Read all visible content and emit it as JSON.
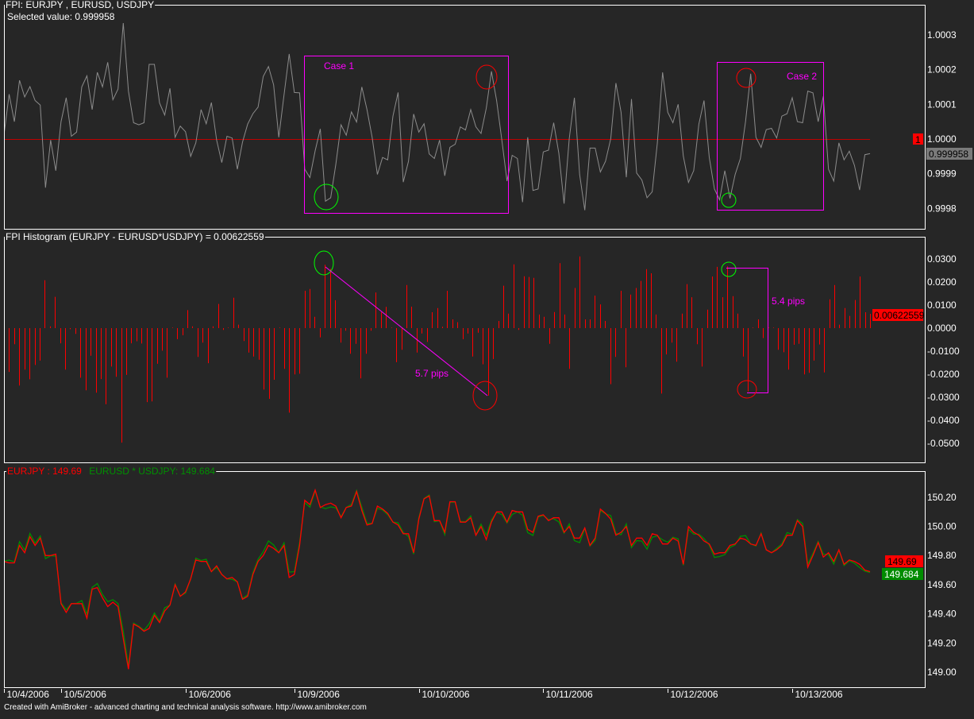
{
  "colors": {
    "background": "#262626",
    "fpi_line": "#8c8c8c",
    "zero_line": "#c00000",
    "histogram": "#ff0000",
    "eurjpy": "#ff0000",
    "synthetic": "#008c00",
    "annotation": "#ff00ff",
    "circle_low": "#00ff00",
    "circle_high": "#ff0000",
    "badge_gray": "#7a7a7a"
  },
  "footer": "Created with AmiBroker - advanced charting and technical analysis software. http://www.amibroker.com",
  "chart_data": [
    {
      "type": "line",
      "title": "FPI:  EURJPY , EURUSD, USDJPY",
      "selected_label": "Selected value: 0.999958",
      "reference_value": 1.0,
      "reference_badge": "1",
      "last_badge": "0.999958",
      "ylim": [
        0.99975,
        1.00037
      ],
      "y_ticks": [
        {
          "v": 1.0003,
          "label": "1.0003"
        },
        {
          "v": 1.0002,
          "label": "1.0002"
        },
        {
          "v": 1.0001,
          "label": "1.0001"
        },
        {
          "v": 1.0,
          "label": "1.0000"
        },
        {
          "v": 0.9999,
          "label": "0.9999"
        },
        {
          "v": 0.9998,
          "label": "0.9998"
        }
      ],
      "annotations": {
        "case1": "Case 1",
        "case2": "Case 2"
      },
      "values": [
        1.000012,
        1.000129,
        1.00005,
        1.000169,
        1.000121,
        1.000151,
        1.000111,
        1.000098,
        0.99986,
        0.999997,
        0.999909,
        1.00005,
        1.000119,
        1.000008,
        1.00002,
        1.00015,
        1.000182,
        1.000085,
        1.000192,
        1.00015,
        1.000221,
        1.000113,
        1.000144,
        1.000334,
        1.000138,
        1.000047,
        1.000041,
        1.000047,
        1.000215,
        1.000215,
        1.000104,
        1.000069,
        1.000146,
        1.000005,
        1.000037,
        1.000021,
        0.99995,
        0.999989,
        1.000085,
        1.000044,
        1.000105,
        0.999997,
        0.999932,
        1.000008,
        1.000003,
        0.999913,
        0.999991,
        1.000043,
        1.000073,
        1.000092,
        1.00018,
        1.000209,
        1.000156,
        1.000005,
        1.000127,
        1.000245,
        1.000134,
        1.000133,
        0.999913,
        0.999889,
        0.999966,
        1.000029,
        0.999821,
        0.999831,
        0.999928,
        1.000041,
        1.000011,
        1.000078,
        1.000049,
        1.00015,
        1.000085,
        1.000005,
        0.999898,
        0.999947,
        0.99994,
        1.000066,
        1.000134,
        0.999876,
        0.999936,
        1.000072,
        1.00002,
        1.000044,
        0.999957,
        0.999944,
        0.999997,
        0.999894,
        0.999976,
        0.999985,
        1.000035,
        1.000026,
        1.000085,
        1.000035,
        1.000016,
        1.000089,
        1.000195,
        1.000111,
        0.999997,
        0.999879,
        0.999953,
        0.999944,
        0.999818,
        1.000005,
        0.999852,
        0.999856,
        0.999963,
        0.999968,
        1.000047,
        0.999959,
        0.999814,
        1.000001,
        1.000119,
        0.999898,
        0.999795,
        0.999974,
        0.999974,
        0.999905,
        0.999936,
        1.000001,
        1.000161,
        1.000077,
        0.99989,
        1.000115,
        0.999902,
        0.999882,
        0.999831,
        0.999848,
        0.999989,
        1.000192,
        1.000077,
        1.000047,
        1.0001,
        0.999951,
        0.999875,
        0.999909,
        1.000043,
        1.000111,
        0.999947,
        0.999856,
        0.999825,
        0.999909,
        0.999829,
        0.999898,
        0.999944,
        1.00005,
        1.000188,
        1.000005,
        0.999976,
        1.000027,
        1.000031,
        1.000003,
        1.000066,
        1.000073,
        1.000119,
        1.00005,
        1.000047,
        1.000138,
        1.000133,
        1.00005,
        1.000123,
        0.999913,
        0.999879,
        0.999989,
        0.99994,
        0.999965,
        0.999924,
        0.999853,
        0.999955,
        0.999958
      ]
    },
    {
      "type": "bar",
      "title": "FPI Histogram  (EURJPY - EURUSD*USDJPY) =  0.00622559",
      "last_badge": "0.00622559",
      "ylim": [
        -0.057,
        0.04
      ],
      "y_ticks": [
        {
          "v": 0.03,
          "label": "0.0300"
        },
        {
          "v": 0.02,
          "label": "0.0200"
        },
        {
          "v": 0.01,
          "label": "0.0100"
        },
        {
          "v": 0,
          "label": "0.0000"
        },
        {
          "v": -0.01,
          "label": "-0.0100"
        },
        {
          "v": -0.02,
          "label": "-0.0200"
        },
        {
          "v": -0.03,
          "label": "-0.0300"
        },
        {
          "v": -0.04,
          "label": "-0.0400"
        },
        {
          "v": -0.05,
          "label": "-0.0500"
        }
      ],
      "annotations": {
        "case1_spread": "5.7 pips",
        "case2_spread": "5.4 pips"
      },
      "values": [
        -0.0014,
        -0.019,
        -0.007,
        -0.0249,
        -0.018,
        -0.0222,
        -0.016,
        -0.0141,
        0.0208,
        0.0008,
        0.0136,
        -0.0066,
        -0.018,
        -0.0005,
        -0.0025,
        -0.0215,
        -0.027,
        -0.012,
        -0.028,
        -0.0221,
        -0.033,
        -0.0167,
        -0.0211,
        -0.0497,
        -0.0203,
        -0.0066,
        -0.0057,
        -0.0067,
        -0.0321,
        -0.0318,
        -0.0155,
        -0.0098,
        -0.0215,
        0.0002,
        -0.0048,
        -0.0031,
        0.0078,
        0.0008,
        -0.0125,
        -0.0063,
        -0.0152,
        0.0008,
        0.0105,
        -0.0008,
        0.0002,
        0.0132,
        0.0015,
        -0.0056,
        -0.0106,
        -0.0123,
        -0.0137,
        -0.0267,
        -0.0307,
        -0.0224,
        0.0002,
        -0.0177,
        -0.0367,
        -0.0201,
        -0.0198,
        0.0162,
        0.017,
        0.0049,
        -0.004,
        0.0275,
        0.0257,
        0.0121,
        -0.0063,
        -0.0011,
        -0.0111,
        -0.0068,
        -0.0218,
        -0.0111,
        -0.0011,
        0.0155,
        0.0069,
        0.0092,
        0.0002,
        -0.0148,
        -0.0094,
        0.0187,
        0.0093,
        -0.0106,
        -0.0023,
        -0.006,
        0.0069,
        0.0087,
        0.0006,
        0.0162,
        0.0038,
        0.0026,
        -0.0048,
        -0.0023,
        -0.0123,
        -0.002,
        -0.0157,
        -0.0293,
        -0.0134,
        0.0031,
        0.0184,
        0.0063,
        0.0277,
        -0.0008,
        0.0225,
        0.0222,
        0.0218,
        0.0059,
        0.0049,
        -0.0068,
        0.007,
        0.0282,
        0.0059,
        -0.0177,
        0.0174,
        0.0311,
        0.0038,
        0.0038,
        0.0141,
        0.0103,
        0.0031,
        -0.0243,
        -0.0125,
        0.0162,
        -0.017,
        0.0146,
        0.0174,
        0.0205,
        0.0256,
        0.0238,
        0.0059,
        -0.0284,
        -0.0114,
        -0.0063,
        -0.0146,
        0.0063,
        0.0191,
        0.0134,
        -0.007,
        -0.0167,
        0.008,
        0.0224,
        0.0266,
        0.0134,
        0.0268,
        0.0139,
        0.0063,
        -0.0123,
        -0.0275,
        0.0002,
        0.0038,
        -0.0043,
        0.0002,
        0.0002,
        -0.0094,
        -0.0105,
        -0.018,
        -0.0072,
        -0.0068,
        -0.0201,
        -0.0194,
        -0.0141,
        -0.0071,
        -0.0192,
        0.0125,
        0.0187,
        0.0015,
        0.0087,
        0.0053,
        0.0122,
        0.0224,
        0.0069,
        0.0062
      ]
    },
    {
      "type": "line",
      "legend": {
        "eurjpy": "EURJPY : 149.69",
        "synthetic": "EURUSD * USDJPY: 149.684"
      },
      "badges": {
        "eurjpy": "149.69",
        "synthetic": "149.684",
        "hidden_tick": "149.80"
      },
      "ylim": [
        148.96,
        150.3
      ],
      "y_ticks": [
        {
          "v": 150.2,
          "label": "150.20"
        },
        {
          "v": 150.0,
          "label": "150.00"
        },
        {
          "v": 149.6,
          "label": "149.60"
        },
        {
          "v": 149.4,
          "label": "149.40"
        },
        {
          "v": 149.2,
          "label": "149.20"
        },
        {
          "v": 149.0,
          "label": "149.00"
        }
      ],
      "x_ticks": [
        {
          "index": 0,
          "label": "10/4/2006"
        },
        {
          "index": 11,
          "label": "10/5/2006"
        },
        {
          "index": 35,
          "label": "10/6/2006"
        },
        {
          "index": 56,
          "label": "10/9/2006"
        },
        {
          "index": 80,
          "label": "10/10/2006"
        },
        {
          "index": 104,
          "label": "10/11/2006"
        },
        {
          "index": 128,
          "label": "10/12/2006"
        },
        {
          "index": 152,
          "label": "10/13/2006"
        }
      ],
      "series": [
        {
          "name": "EURJPY",
          "values": [
            149.76,
            149.75,
            149.75,
            149.87,
            149.82,
            149.93,
            149.87,
            149.92,
            149.8,
            149.8,
            149.81,
            149.47,
            149.41,
            149.47,
            149.47,
            149.47,
            149.37,
            149.57,
            149.58,
            149.51,
            149.45,
            149.48,
            149.45,
            149.23,
            149.02,
            149.33,
            149.31,
            149.28,
            149.3,
            149.39,
            149.34,
            149.42,
            149.46,
            149.6,
            149.52,
            149.55,
            149.64,
            149.77,
            149.76,
            149.76,
            149.69,
            149.73,
            149.67,
            149.64,
            149.65,
            149.62,
            149.5,
            149.52,
            149.67,
            149.76,
            149.8,
            149.87,
            149.85,
            149.82,
            149.87,
            149.65,
            149.67,
            149.87,
            150.18,
            150.15,
            150.25,
            150.13,
            150.15,
            150.16,
            150.14,
            150.06,
            150.13,
            150.14,
            150.24,
            150.11,
            150.01,
            150.02,
            150.14,
            150.12,
            150.09,
            150.03,
            150.01,
            149.95,
            149.95,
            149.82,
            150.05,
            150.19,
            150.21,
            150.04,
            150.04,
            149.96,
            150.17,
            150.17,
            150.03,
            150.03,
            150.06,
            149.94,
            150.0,
            149.91,
            150.03,
            150.1,
            150.1,
            150.03,
            150.11,
            150.1,
            150.1,
            149.98,
            149.96,
            150.07,
            150.08,
            150.04,
            150.06,
            150.06,
            149.96,
            150.0,
            149.92,
            149.92,
            149.99,
            149.87,
            149.92,
            150.12,
            150.09,
            150.05,
            149.94,
            149.96,
            150.0,
            149.87,
            149.92,
            149.92,
            149.87,
            149.95,
            149.94,
            149.88,
            149.88,
            149.92,
            149.9,
            149.74,
            150.0,
            149.96,
            149.94,
            149.9,
            149.88,
            149.81,
            149.82,
            149.82,
            149.87,
            149.88,
            149.92,
            149.91,
            149.88,
            149.87,
            149.95,
            149.84,
            149.82,
            149.84,
            149.87,
            149.94,
            149.94,
            150.04,
            150.0,
            149.72,
            149.8,
            149.89,
            149.79,
            149.82,
            149.76,
            149.84,
            149.74,
            149.77,
            149.76,
            149.74,
            149.7,
            149.69
          ]
        },
        {
          "name": "EURUSD * USDJPY",
          "derived_from": "EURJPY minus FPI Histogram"
        }
      ]
    }
  ]
}
